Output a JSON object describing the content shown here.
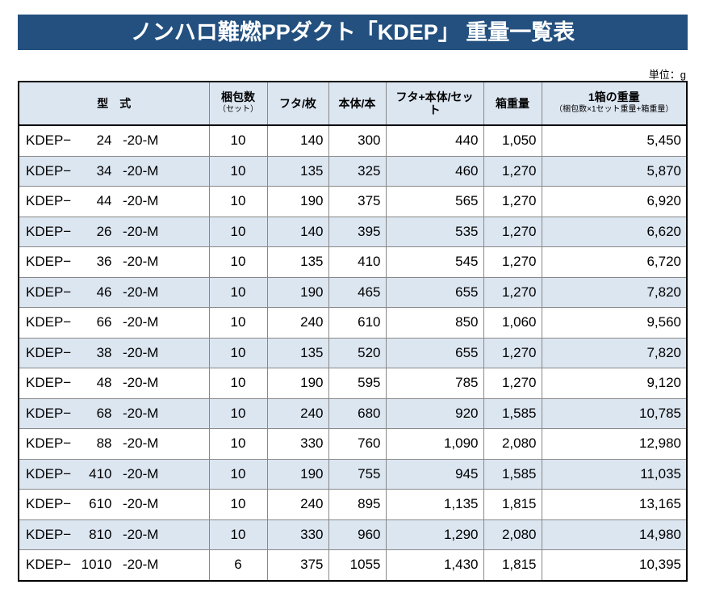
{
  "header": {
    "title": "ノンハロ難燃PPダクト「KDEP」 重量一覧表",
    "unit": "単位：g"
  },
  "table": {
    "columns": [
      {
        "label": "型　式"
      },
      {
        "label": "梱包数",
        "sub": "（セット）"
      },
      {
        "label": "フタ/枚"
      },
      {
        "label": "本体/本"
      },
      {
        "label": "フタ+本体/セット"
      },
      {
        "label": "箱重量"
      },
      {
        "label": "1箱の重量",
        "sub": "（梱包数×1セット重量+箱重量）"
      }
    ],
    "rows": [
      [
        "KDEP−",
        "24",
        "-20-M",
        "10",
        "140",
        "300",
        "440",
        "1,050",
        "5,450"
      ],
      [
        "KDEP−",
        "34",
        "-20-M",
        "10",
        "135",
        "325",
        "460",
        "1,270",
        "5,870"
      ],
      [
        "KDEP−",
        "44",
        "-20-M",
        "10",
        "190",
        "375",
        "565",
        "1,270",
        "6,920"
      ],
      [
        "KDEP−",
        "26",
        "-20-M",
        "10",
        "140",
        "395",
        "535",
        "1,270",
        "6,620"
      ],
      [
        "KDEP−",
        "36",
        "-20-M",
        "10",
        "135",
        "410",
        "545",
        "1,270",
        "6,720"
      ],
      [
        "KDEP−",
        "46",
        "-20-M",
        "10",
        "190",
        "465",
        "655",
        "1,270",
        "7,820"
      ],
      [
        "KDEP−",
        "66",
        "-20-M",
        "10",
        "240",
        "610",
        "850",
        "1,060",
        "9,560"
      ],
      [
        "KDEP−",
        "38",
        "-20-M",
        "10",
        "135",
        "520",
        "655",
        "1,270",
        "7,820"
      ],
      [
        "KDEP−",
        "48",
        "-20-M",
        "10",
        "190",
        "595",
        "785",
        "1,270",
        "9,120"
      ],
      [
        "KDEP−",
        "68",
        "-20-M",
        "10",
        "240",
        "680",
        "920",
        "1,585",
        "10,785"
      ],
      [
        "KDEP−",
        "88",
        "-20-M",
        "10",
        "330",
        "760",
        "1,090",
        "2,080",
        "12,980"
      ],
      [
        "KDEP−",
        "410",
        "-20-M",
        "10",
        "190",
        "755",
        "945",
        "1,585",
        "11,035"
      ],
      [
        "KDEP−",
        "610",
        "-20-M",
        "10",
        "240",
        "895",
        "1,135",
        "1,815",
        "13,165"
      ],
      [
        "KDEP−",
        "810",
        "-20-M",
        "10",
        "330",
        "960",
        "1,290",
        "2,080",
        "14,980"
      ],
      [
        "KDEP−",
        "1010",
        "-20-M",
        "6",
        "375",
        "1055",
        "1,430",
        "1,815",
        "10,395"
      ]
    ]
  }
}
